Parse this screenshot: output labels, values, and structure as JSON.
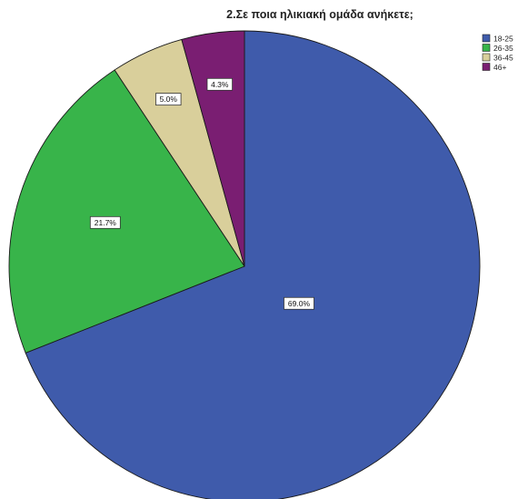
{
  "chart_data": {
    "type": "pie",
    "title": "2.Σε ποια ηλικιακή ομάδα ανήκετε;",
    "categories": [
      "18-25",
      "26-35",
      "36-45",
      "46+"
    ],
    "values": [
      69.0,
      21.7,
      5.0,
      4.3
    ],
    "data_labels": [
      "69.0%",
      "21.7%",
      "5.0%",
      "4.3%"
    ],
    "colors": [
      "#3f5bab",
      "#38b44a",
      "#d9cf9b",
      "#7a1e72"
    ],
    "legend_position": "top-right",
    "start": "top, clockwise"
  }
}
